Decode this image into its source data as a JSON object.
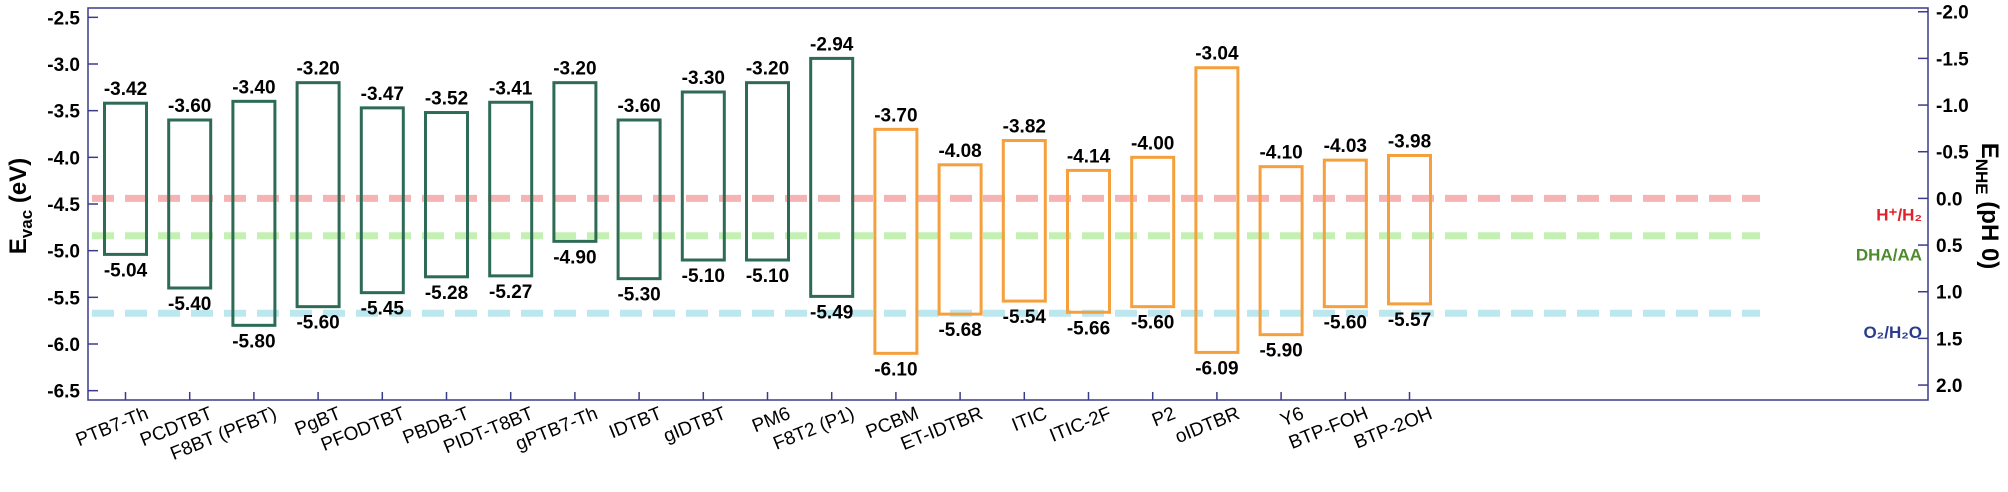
{
  "chart_data": {
    "type": "bar",
    "left_axis": {
      "label_main": "E",
      "label_sub": "vac",
      "label_unit": " (eV)",
      "range": [
        -2.4,
        -6.6
      ],
      "ticks": [
        "-2.5",
        "-3.0",
        "-3.5",
        "-4.0",
        "-4.5",
        "-5.0",
        "-5.5",
        "-6.0",
        "-6.5"
      ],
      "tick_values": [
        -2.5,
        -3.0,
        -3.5,
        -4.0,
        -4.5,
        -5.0,
        -5.5,
        -6.0,
        -6.5
      ]
    },
    "right_axis": {
      "label_main": "E",
      "label_sub": "NHE",
      "label_unit": " (pH 0)",
      "offset": -4.44,
      "ticks": [
        "-2.0",
        "-1.5",
        "-1.0",
        "-0.5",
        "0.0",
        "0.5",
        "1.0",
        "1.5",
        "2.0"
      ],
      "tick_values": [
        -2.0,
        -1.5,
        -1.0,
        -0.5,
        0.0,
        0.5,
        1.0,
        1.5,
        2.0
      ]
    },
    "categories": [
      "PTB7-Th",
      "PCDTBT",
      "F8BT (PFBT)",
      "PgBT",
      "PFODTBT",
      "PBDB-T",
      "PIDT-T8BT",
      "gPTB7-Th",
      "IDTBT",
      "gIDTBT",
      "PM6",
      "F8T2 (P1)",
      "PCBM",
      "ET-IDTBR",
      "ITIC",
      "ITIC-2F",
      "P2",
      "oIDTBR",
      "Y6",
      "BTP-FOH",
      "BTP-2OH"
    ],
    "series": [
      {
        "values_top": [
          -3.42,
          -3.6,
          -3.4,
          -3.2,
          -3.47,
          -3.52,
          -3.41,
          -3.2,
          -3.6,
          -3.3,
          -3.2,
          -2.94
        ],
        "values_bottom": [
          -5.04,
          -5.4,
          -5.8,
          -5.6,
          -5.45,
          -5.28,
          -5.27,
          -4.9,
          -5.3,
          -5.1,
          -5.1,
          -5.49
        ],
        "color": "#2e6b55",
        "start_index": 0
      },
      {
        "values_top": [
          -3.7,
          -4.08,
          -3.82,
          -4.14,
          -4.0,
          -3.04,
          -4.1,
          -4.03,
          -3.98
        ],
        "values_bottom": [
          -6.1,
          -5.68,
          -5.54,
          -5.66,
          -5.6,
          -6.09,
          -5.9,
          -5.6,
          -5.57
        ],
        "color": "#f5a03c",
        "start_index": 12
      }
    ],
    "labels_top": [
      "-3.42",
      "-3.60",
      "-3.40",
      "-3.20",
      "-3.47",
      "-3.52",
      "-3.41",
      "-3.20",
      "-3.60",
      "-3.30",
      "-3.20",
      "-2.94",
      "-3.70",
      "-4.08",
      "-3.82",
      "-4.14",
      "-4.00",
      "-3.04",
      "-4.10",
      "-4.03",
      "-3.98"
    ],
    "labels_bottom": [
      "-5.04",
      "-5.40",
      "-5.80",
      "-5.60",
      "-5.45",
      "-5.28",
      "-5.27",
      "-4.90",
      "-5.30",
      "-5.10",
      "-5.10",
      "-5.49",
      "-6.10",
      "-5.68",
      "-5.54",
      "-5.66",
      "-5.60",
      "-6.09",
      "-5.90",
      "-5.60",
      "-5.57"
    ],
    "reference_lines": [
      {
        "label": "H⁺/H₂",
        "value": -4.44,
        "color": "#f6b3b3",
        "text_color": "#e0202a"
      },
      {
        "label": "DHA/AA",
        "value": -4.84,
        "color": "#c4f0b4",
        "text_color": "#4e8a2e"
      },
      {
        "label": "O₂/H₂O",
        "value": -5.67,
        "color": "#bde7ee",
        "text_color": "#2a3c8c"
      }
    ],
    "grid": false
  }
}
